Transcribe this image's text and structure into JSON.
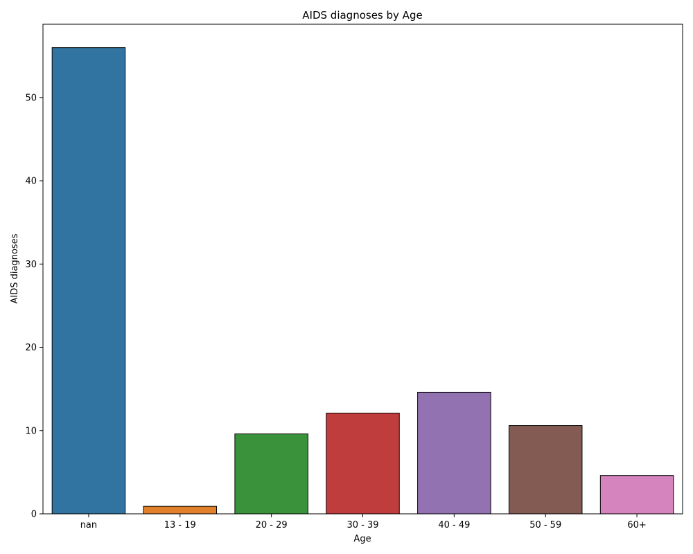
{
  "chart_data": {
    "type": "bar",
    "title": "AIDS diagnoses by Age",
    "xlabel": "Age",
    "ylabel": "AIDS diagnoses",
    "categories": [
      "nan",
      "13 - 19",
      "20 - 29",
      "30 - 39",
      "40 - 49",
      "50 - 59",
      "60+"
    ],
    "values": [
      56.0,
      0.9,
      9.6,
      12.1,
      14.6,
      10.6,
      4.6
    ],
    "colors": [
      "#3274a1",
      "#e1812c",
      "#3a923a",
      "#c03d3e",
      "#9372b2",
      "#845b53",
      "#d684bd"
    ],
    "ylim": [
      0,
      58.8
    ],
    "yticks": [
      0,
      10,
      20,
      30,
      40,
      50
    ],
    "grid": false,
    "legend": "none"
  }
}
